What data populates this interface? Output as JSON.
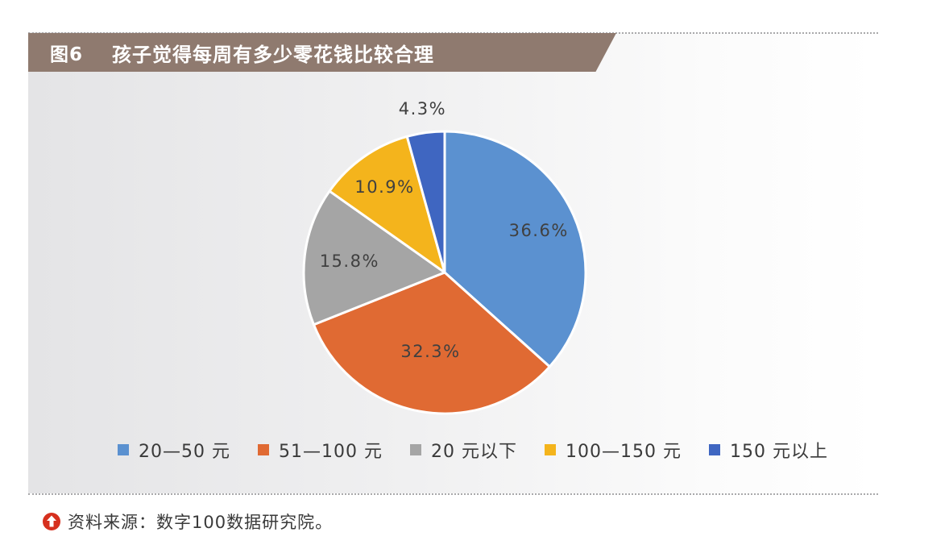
{
  "figure": {
    "number": "图6",
    "title": "孩子觉得每周有多少零花钱比较合理"
  },
  "chart_data": {
    "type": "pie",
    "title": "孩子觉得每周有多少零花钱比较合理",
    "unit": "%",
    "slices": [
      {
        "label": "20—50 元",
        "value": 36.6,
        "display": "36.6%",
        "color": "#5b91d0"
      },
      {
        "label": "51—100 元",
        "value": 32.3,
        "display": "32.3%",
        "color": "#e06a33"
      },
      {
        "label": "20 元以下",
        "value": 15.8,
        "display": "15.8%",
        "color": "#a5a5a5"
      },
      {
        "label": "100—150 元",
        "value": 10.9,
        "display": "10.9%",
        "color": "#f4b41c"
      },
      {
        "label": "150 元以上",
        "value": 4.3,
        "display": "4.3%",
        "color": "#3f66c1"
      }
    ],
    "legend_position": "bottom",
    "start": "top",
    "direction": "clockwise"
  },
  "source": {
    "text": "资料来源：数字100数据研究院。",
    "icon": "up-arrow-circle-icon",
    "icon_color": "#d6301e"
  }
}
